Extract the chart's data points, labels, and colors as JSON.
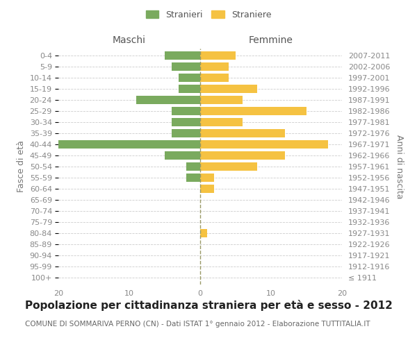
{
  "age_groups": [
    "100+",
    "95-99",
    "90-94",
    "85-89",
    "80-84",
    "75-79",
    "70-74",
    "65-69",
    "60-64",
    "55-59",
    "50-54",
    "45-49",
    "40-44",
    "35-39",
    "30-34",
    "25-29",
    "20-24",
    "15-19",
    "10-14",
    "5-9",
    "0-4"
  ],
  "birth_years": [
    "≤ 1911",
    "1912-1916",
    "1917-1921",
    "1922-1926",
    "1927-1931",
    "1932-1936",
    "1937-1941",
    "1942-1946",
    "1947-1951",
    "1952-1956",
    "1957-1961",
    "1962-1966",
    "1967-1971",
    "1972-1976",
    "1977-1981",
    "1982-1986",
    "1987-1991",
    "1992-1996",
    "1997-2001",
    "2002-2006",
    "2007-2011"
  ],
  "males": [
    0,
    0,
    0,
    0,
    0,
    0,
    0,
    0,
    0,
    2,
    2,
    5,
    20,
    4,
    4,
    4,
    9,
    3,
    3,
    4,
    5
  ],
  "females": [
    0,
    0,
    0,
    0,
    1,
    0,
    0,
    0,
    2,
    2,
    8,
    12,
    18,
    12,
    6,
    15,
    6,
    8,
    4,
    4,
    5
  ],
  "male_color": "#7aaa5e",
  "female_color": "#f5c242",
  "title": "Popolazione per cittadinanza straniera per età e sesso - 2012",
  "subtitle": "COMUNE DI SOMMARIVA PERNO (CN) - Dati ISTAT 1° gennaio 2012 - Elaborazione TUTTITALIA.IT",
  "ylabel_left": "Fasce di età",
  "ylabel_right": "Anni di nascita",
  "xlabel_left": "Maschi",
  "xlabel_right": "Femmine",
  "legend_male": "Stranieri",
  "legend_female": "Straniere",
  "xlim": 20,
  "background_color": "#ffffff",
  "grid_color": "#cccccc",
  "center_line_color": "#aaaaaa",
  "axis_label_color": "#777777",
  "tick_label_color": "#888888",
  "title_fontsize": 11,
  "subtitle_fontsize": 7.5,
  "tick_fontsize": 8,
  "bar_height": 0.75
}
